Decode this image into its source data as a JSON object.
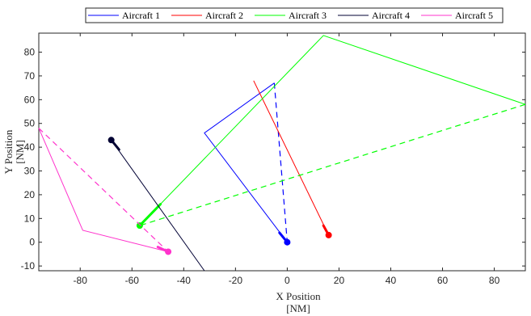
{
  "chart_data": {
    "type": "line",
    "title": "",
    "xlabel": "X Position",
    "xlabel_unit": "[NM]",
    "ylabel": "Y Position",
    "ylabel_unit": "[NM]",
    "xlim": [
      -96,
      92
    ],
    "ylim": [
      -12,
      88
    ],
    "xticks": [
      -80,
      -60,
      -40,
      -20,
      0,
      20,
      40,
      60,
      80
    ],
    "yticks": [
      -10,
      0,
      10,
      20,
      30,
      40,
      50,
      60,
      70,
      80
    ],
    "grid": false,
    "legend_position": "top",
    "series": [
      {
        "name": "Aircraft 1",
        "color": "#0000ff",
        "solid_path": [
          [
            0,
            0
          ],
          [
            -32,
            46
          ],
          [
            -5,
            67
          ]
        ],
        "dashed_path": [
          [
            -5,
            67
          ],
          [
            0,
            0
          ]
        ],
        "heading_segment": [
          [
            -3,
            4
          ],
          [
            0,
            0
          ]
        ],
        "marker": [
          0,
          0
        ]
      },
      {
        "name": "Aircraft 2",
        "color": "#ff0000",
        "solid_path": [
          [
            16,
            3
          ],
          [
            -13,
            68
          ]
        ],
        "dashed_path": [],
        "heading_segment": [
          [
            14,
            7
          ],
          [
            16,
            3
          ]
        ],
        "marker": [
          16,
          3
        ]
      },
      {
        "name": "Aircraft 3",
        "color": "#00ff00",
        "solid_path": [
          [
            -57,
            7
          ],
          [
            14,
            87
          ],
          [
            92,
            58
          ]
        ],
        "dashed_path": [
          [
            92,
            58
          ],
          [
            -57,
            7
          ]
        ],
        "heading_segment": [
          [
            -57,
            7
          ],
          [
            -49,
            16
          ]
        ],
        "marker": [
          -57,
          7
        ]
      },
      {
        "name": "Aircraft 4",
        "color": "#000033",
        "solid_path": [
          [
            -68,
            43
          ],
          [
            -32,
            -12
          ]
        ],
        "dashed_path": [],
        "heading_segment": [
          [
            -68,
            43
          ],
          [
            -65,
            39
          ]
        ],
        "marker": [
          -68,
          43
        ]
      },
      {
        "name": "Aircraft 5",
        "color": "#ff33cc",
        "solid_path": [
          [
            -46,
            -4
          ],
          [
            -79,
            5
          ],
          [
            -96,
            48
          ]
        ],
        "dashed_path": [
          [
            -96,
            48
          ],
          [
            -46,
            -4
          ]
        ],
        "heading_segment": [
          [
            -50,
            -2
          ],
          [
            -46,
            -4
          ]
        ],
        "marker": [
          -46,
          -4
        ]
      }
    ]
  }
}
